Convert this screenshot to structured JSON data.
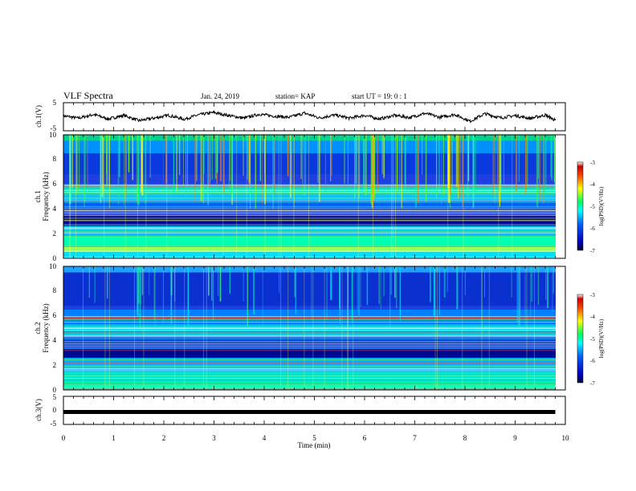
{
  "header": {
    "title": "VLF Spectra",
    "date": "Jan. 24, 2019",
    "station": "station= KAP",
    "start": "start  UT =   19: 0  : 1"
  },
  "chart_data": [
    {
      "panel": "ch1-waveform",
      "type": "line",
      "ylabel": "ch.1(V)",
      "ylim": [
        -5,
        5
      ],
      "yticks": [
        "5",
        "-5"
      ],
      "xlim": [
        0,
        10
      ],
      "x_end": 9.8,
      "series": [
        {
          "x": [
            0,
            0.3,
            0.6,
            0.9,
            1.2,
            1.5,
            1.8,
            2.1,
            2.4,
            2.7,
            3.0,
            3.3,
            3.6,
            3.9,
            4.2,
            4.5,
            4.8,
            5.1,
            5.4,
            5.7,
            6.0,
            6.3,
            6.6,
            6.9,
            7.2,
            7.5,
            7.8,
            8.1,
            8.4,
            8.7,
            9.0,
            9.3,
            9.6,
            9.8
          ],
          "values": [
            0.3,
            -0.5,
            0.8,
            -0.8,
            0.5,
            -1.4,
            -0.5,
            0.5,
            -0.9,
            0.7,
            1.5,
            0.4,
            -0.5,
            0.9,
            0.2,
            -0.2,
            1.3,
            -0.4,
            0.6,
            -0.5,
            0.5,
            -0.8,
            0.5,
            -0.3,
            1.2,
            -0.2,
            0.8,
            -1.6,
            1.1,
            -0.4,
            0.4,
            -0.6,
            0.6,
            -1.3
          ]
        }
      ]
    },
    {
      "panel": "ch1-spectrogram",
      "type": "heatmap",
      "ylabel": "ch.1\nFrequency (kHz)",
      "ylim": [
        0,
        10
      ],
      "yticks": [
        "0",
        "2",
        "4",
        "6",
        "8",
        "10"
      ],
      "xlim": [
        0,
        10
      ],
      "colorbar": {
        "label": "log(PSD)(V²/Hz)",
        "range": [
          -7,
          -3
        ],
        "ticks": [
          "-3",
          "-4",
          "-5",
          "-6",
          "-7"
        ]
      }
    },
    {
      "panel": "ch2-spectrogram",
      "type": "heatmap",
      "ylabel": "ch.2\nFrequency (kHz)",
      "ylim": [
        0,
        10
      ],
      "yticks": [
        "0",
        "2",
        "4",
        "6",
        "8",
        "10"
      ],
      "xlim": [
        0,
        10
      ],
      "colorbar": {
        "label": "log(PSD)(V²/Hz)",
        "range": [
          -7,
          -3
        ],
        "ticks": [
          "-3",
          "-4",
          "-5",
          "-6",
          "-7"
        ]
      }
    },
    {
      "panel": "ch3-waveform",
      "type": "line",
      "ylabel": "ch.3(V)",
      "ylim": [
        -5,
        5
      ],
      "yticks": [
        "5",
        "0",
        "-5"
      ],
      "xlim": [
        0,
        10
      ],
      "x_end": 9.8,
      "series": [
        {
          "x": [
            0,
            9.8
          ],
          "values": [
            0,
            0
          ]
        }
      ]
    }
  ],
  "xaxis": {
    "label": "Time (min)",
    "ticks": [
      "0",
      "1",
      "2",
      "3",
      "4",
      "5",
      "6",
      "7",
      "8",
      "9",
      "10"
    ]
  }
}
